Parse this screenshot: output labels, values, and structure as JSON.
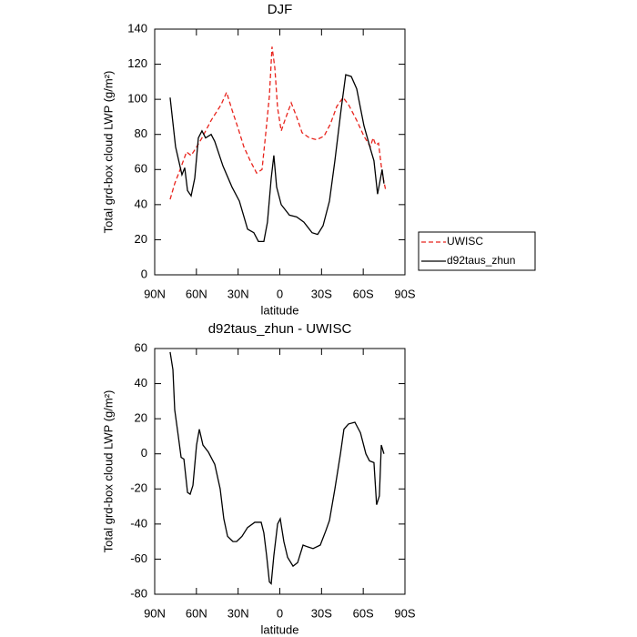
{
  "chart_data": [
    {
      "type": "line",
      "title": "DJF",
      "x_label": "latitude",
      "y_label": "Total grd-box cloud LWP (g/m²)",
      "xlim": [
        90,
        -90
      ],
      "xticks": [
        {
          "value": 90,
          "label": "90N"
        },
        {
          "value": 60,
          "label": "60N"
        },
        {
          "value": 30,
          "label": "30N"
        },
        0,
        {
          "value": -30,
          "label": "30S"
        },
        {
          "value": -60,
          "label": "60S"
        },
        {
          "value": -90,
          "label": "90S"
        }
      ],
      "ylim": [
        0,
        140
      ],
      "yticks": [
        0,
        20,
        40,
        60,
        80,
        100,
        120,
        140
      ],
      "series": [
        {
          "name": "UWISC",
          "color": "#e8231c",
          "line_style": "dashed",
          "x": [
            78.9,
            75.6,
            71.7,
            67.1,
            63.8,
            60.5,
            56,
            49.4,
            42.2,
            38.3,
            34.4,
            29.8,
            25.9,
            21.3,
            16.7,
            12.8,
            10.2,
            7.5,
            5.6,
            3.6,
            1.6,
            -1,
            -3.6,
            -8.2,
            -12.1,
            -16,
            -21.3,
            -26.5,
            -31.8,
            -36.4,
            -41,
            -45.5,
            -49.4,
            -55.3,
            -60.5,
            -65.1,
            -67.1,
            -69,
            -71,
            -73.6,
            -76.2
          ],
          "values": [
            43,
            52,
            60,
            70,
            68,
            72,
            78,
            88,
            97,
            104,
            94,
            83,
            73,
            65,
            58,
            60,
            80,
            102,
            130,
            118,
            95,
            82,
            88,
            98,
            90,
            81,
            78,
            77,
            79,
            86,
            96,
            101,
            97,
            88,
            79,
            73,
            78,
            74,
            75,
            58,
            48
          ]
        },
        {
          "name": "d92taus_zhun",
          "color": "#000000",
          "line_style": "solid",
          "x": [
            78.9,
            75,
            70.4,
            68.4,
            66.4,
            63.8,
            61.2,
            58.6,
            56,
            53.4,
            49.4,
            46.8,
            40.9,
            34.4,
            29.1,
            23.2,
            18.7,
            15.4,
            11.5,
            8.9,
            6.2,
            4.3,
            2.3,
            -1,
            -6.9,
            -12.1,
            -17.3,
            -23.2,
            -27.2,
            -31.1,
            -35.7,
            -39.6,
            -44.2,
            -47.4,
            -51.4,
            -55.3,
            -60.5,
            -65.1,
            -67.7,
            -70.3,
            -73.6,
            -74.9
          ],
          "values": [
            101,
            73,
            57,
            61,
            48,
            45,
            55,
            78,
            82,
            78,
            80,
            76,
            62,
            50,
            42,
            26,
            24,
            19,
            19,
            30,
            55,
            68,
            50,
            40,
            34,
            33,
            30,
            24,
            23,
            28,
            42,
            65,
            95,
            114,
            113,
            106,
            85,
            72,
            65,
            46,
            60,
            52
          ]
        }
      ]
    },
    {
      "type": "line",
      "title": "d92taus_zhun - UWISC",
      "x_label": "latitude",
      "y_label": "Total grd-box cloud LWP (g/m²)",
      "xlim": [
        90,
        -90
      ],
      "xticks": [
        {
          "value": 90,
          "label": "90N"
        },
        {
          "value": 60,
          "label": "60N"
        },
        {
          "value": 30,
          "label": "30N"
        },
        0,
        {
          "value": -30,
          "label": "30S"
        },
        {
          "value": -60,
          "label": "60S"
        },
        {
          "value": -90,
          "label": "90S"
        }
      ],
      "ylim": [
        -80,
        60
      ],
      "yticks": [
        -80,
        -60,
        -40,
        -20,
        0,
        20,
        40,
        60
      ],
      "series": [
        {
          "color": "#000000",
          "line_style": "solid",
          "x": [
            78.9,
            76.9,
            75.6,
            73,
            71,
            69,
            66.4,
            64.5,
            62.5,
            59.9,
            57.9,
            55.3,
            51.4,
            46.8,
            42.9,
            40.3,
            37.6,
            33.7,
            31.1,
            27.2,
            23.2,
            18,
            13.4,
            11.5,
            9.5,
            7.5,
            6.2,
            4.3,
            1.6,
            -0.3,
            -2.9,
            -5.6,
            -9.5,
            -12.8,
            -16.7,
            -20,
            -23.9,
            -29.1,
            -33,
            -35.7,
            -39.6,
            -43.6,
            -46.1,
            -49.4,
            -54,
            -58,
            -61.9,
            -64.5,
            -67.7,
            -69.6,
            -71.6,
            -73,
            -74.9
          ],
          "values": [
            58,
            48,
            25,
            10,
            -2,
            -3,
            -22,
            -23,
            -18,
            5,
            14,
            5,
            1,
            -6,
            -20,
            -37,
            -47,
            -50,
            -50,
            -47,
            -42,
            -39,
            -39,
            -45,
            -58,
            -73,
            -74,
            -58,
            -40,
            -37,
            -50,
            -59,
            -64,
            -62,
            -52,
            -53,
            -54,
            -52,
            -44,
            -38,
            -20,
            0,
            14,
            17,
            18,
            12,
            0,
            -4,
            -5,
            -29,
            -24,
            5,
            0
          ]
        }
      ]
    }
  ]
}
